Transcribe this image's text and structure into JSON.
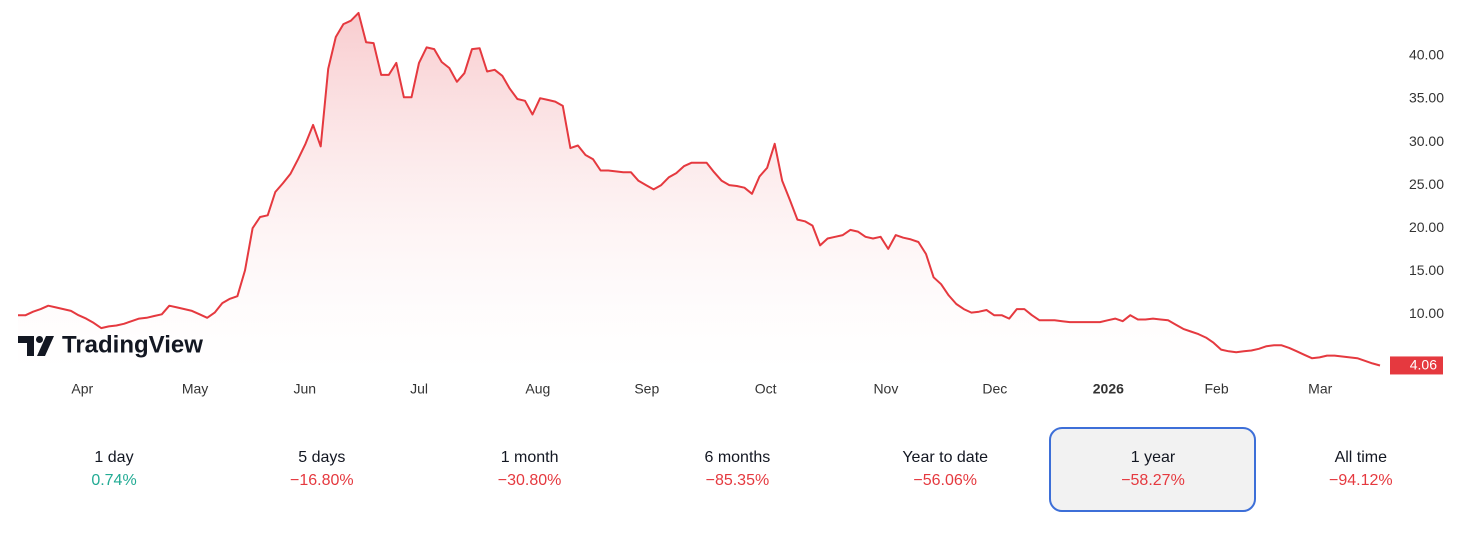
{
  "chart_data": {
    "type": "area-line",
    "color": "#e5393f",
    "fill_color": "#f7c3c6",
    "values": [
      9.9,
      9.9,
      10.3,
      10.6,
      11.0,
      10.8,
      10.6,
      10.4,
      9.9,
      9.5,
      9.0,
      8.4,
      8.6,
      8.7,
      8.9,
      9.2,
      9.5,
      9.6,
      9.8,
      10.0,
      11.0,
      10.8,
      10.6,
      10.4,
      10.0,
      9.6,
      10.2,
      11.3,
      11.8,
      12.1,
      15.1,
      20.0,
      21.3,
      21.5,
      24.2,
      25.2,
      26.3,
      28.0,
      29.8,
      32.0,
      29.5,
      38.5,
      42.2,
      43.7,
      44.1,
      45.0,
      41.6,
      41.5,
      37.8,
      37.8,
      39.2,
      35.2,
      35.2,
      39.2,
      41.0,
      40.8,
      39.3,
      38.6,
      37.0,
      38.0,
      40.8,
      40.9,
      38.2,
      38.4,
      37.7,
      36.2,
      35.0,
      34.8,
      33.2,
      35.1,
      34.9,
      34.7,
      34.2,
      29.3,
      29.6,
      28.5,
      28.0,
      26.7,
      26.7,
      26.6,
      26.5,
      26.5,
      25.5,
      25.0,
      24.5,
      25.0,
      25.9,
      26.4,
      27.2,
      27.6,
      27.6,
      27.6,
      26.5,
      25.5,
      25.0,
      24.9,
      24.7,
      24.0,
      26.0,
      27.0,
      29.8,
      25.5,
      23.3,
      21.0,
      20.8,
      20.3,
      18.0,
      18.8,
      19.0,
      19.2,
      19.8,
      19.6,
      19.0,
      18.8,
      19.0,
      17.6,
      19.2,
      18.9,
      18.7,
      18.4,
      17.0,
      14.3,
      13.5,
      12.2,
      11.2,
      10.6,
      10.2,
      10.3,
      10.5,
      9.9,
      9.9,
      9.5,
      10.6,
      10.6,
      9.9,
      9.3,
      9.3,
      9.3,
      9.2,
      9.1,
      9.1,
      9.1,
      9.1,
      9.1,
      9.3,
      9.5,
      9.2,
      9.9,
      9.4,
      9.4,
      9.5,
      9.4,
      9.3,
      8.8,
      8.3,
      8.0,
      7.7,
      7.3,
      6.7,
      5.9,
      5.7,
      5.6,
      5.7,
      5.8,
      6.0,
      6.3,
      6.4,
      6.4,
      6.1,
      5.7,
      5.3,
      4.9,
      5.0,
      5.2,
      5.2,
      5.1,
      5.0,
      4.9,
      4.6,
      4.3,
      4.06
    ],
    "last_price": 4.06,
    "last_price_color": "#e5393f",
    "xlim": [
      0,
      180
    ],
    "xticks": [
      {
        "value": 8.5,
        "label": "Apr"
      },
      {
        "value": 23.4,
        "label": "May"
      },
      {
        "value": 37.9,
        "label": "Jun"
      },
      {
        "value": 53.0,
        "label": "Jul"
      },
      {
        "value": 68.7,
        "label": "Aug"
      },
      {
        "value": 83.1,
        "label": "Sep"
      },
      {
        "value": 98.8,
        "label": "Oct"
      },
      {
        "value": 114.7,
        "label": "Nov"
      },
      {
        "value": 129.1,
        "label": "Dec"
      },
      {
        "value": 144.1,
        "label": "2026",
        "bold": true
      },
      {
        "value": 158.4,
        "label": "Feb"
      },
      {
        "value": 172.1,
        "label": "Mar"
      }
    ],
    "ylim": [
      3.3,
      46.5
    ],
    "yticks": [
      {
        "value": 10,
        "label": "10.00"
      },
      {
        "value": 15,
        "label": "15.00"
      },
      {
        "value": 20,
        "label": "20.00"
      },
      {
        "value": 25,
        "label": "25.00"
      },
      {
        "value": 30,
        "label": "30.00"
      },
      {
        "value": 35,
        "label": "35.00"
      },
      {
        "value": 40,
        "label": "40.00"
      }
    ],
    "grid": false,
    "watermark": "TradingView"
  },
  "periods": [
    {
      "label": "1 day",
      "change": "0.74%",
      "color": "#22ab94"
    },
    {
      "label": "5 days",
      "change": "−16.80%",
      "color": "#e5393f"
    },
    {
      "label": "1 month",
      "change": "−30.80%",
      "color": "#e5393f"
    },
    {
      "label": "6 months",
      "change": "−85.35%",
      "color": "#e5393f"
    },
    {
      "label": "Year to date",
      "change": "−56.06%",
      "color": "#e5393f"
    },
    {
      "label": "1 year",
      "change": "−58.27%",
      "color": "#e5393f"
    },
    {
      "label": "All time",
      "change": "−94.12%",
      "color": "#e5393f"
    }
  ],
  "active_period": "1 year"
}
